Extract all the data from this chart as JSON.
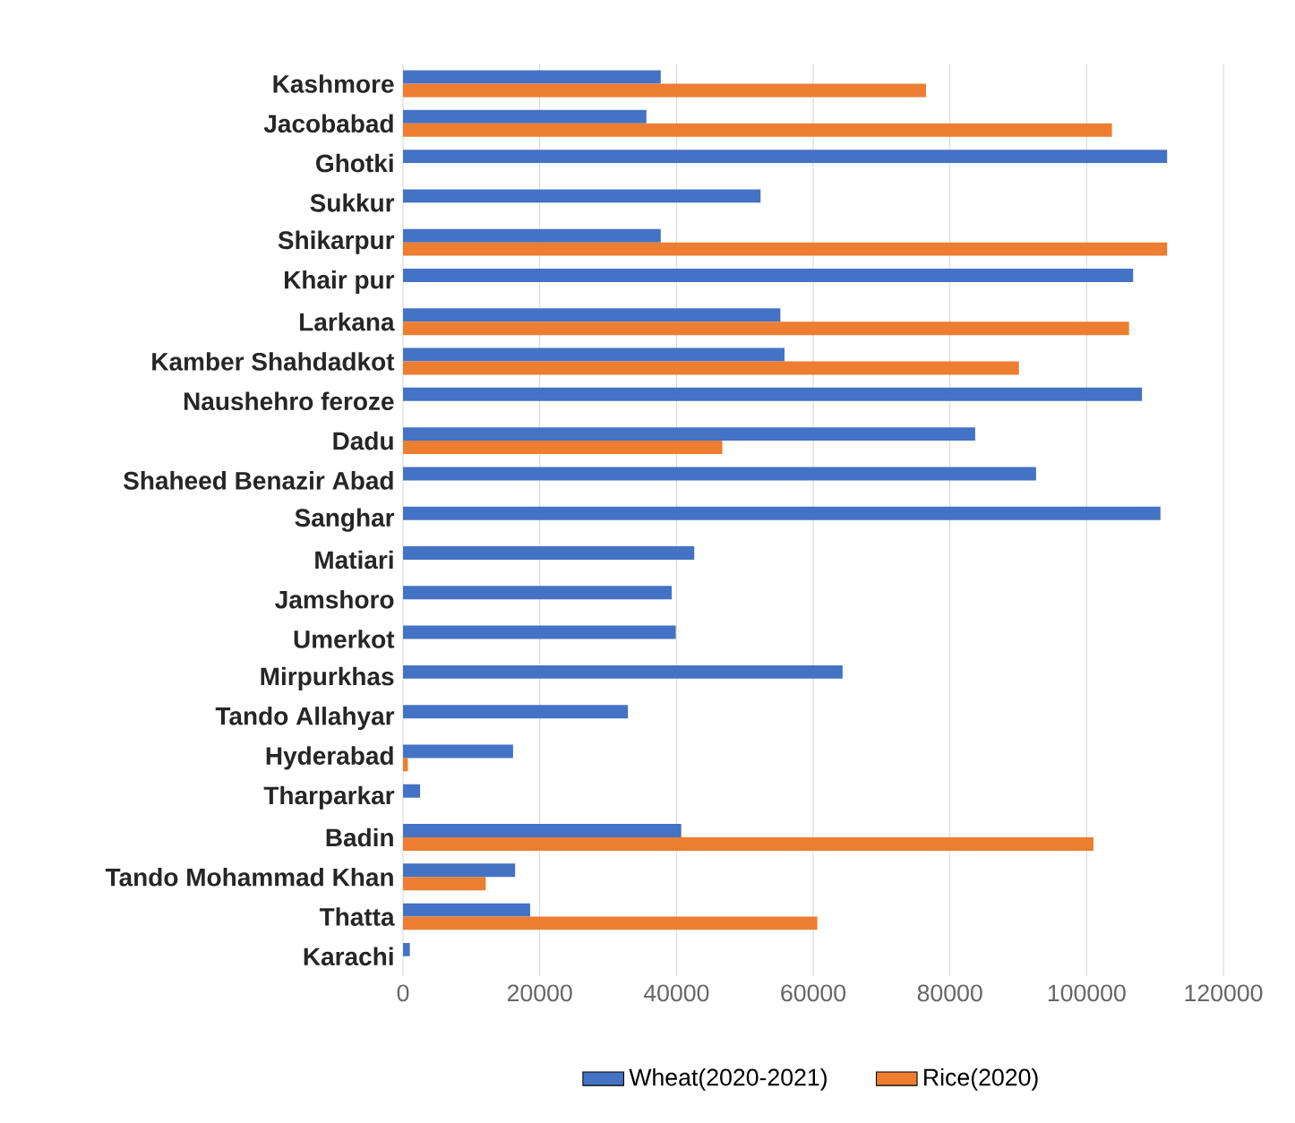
{
  "chart_data": {
    "type": "bar",
    "orientation": "horizontal",
    "categories": [
      "Kashmore",
      "Jacobabad",
      "Ghotki",
      "Sukkur",
      "Shikarpur",
      "Khair pur",
      "Larkana",
      "Kamber Shahdadkot",
      "Naushehro feroze",
      "Dadu",
      "Shaheed Benazir Abad",
      "Sanghar",
      "Matiari",
      "Jamshoro",
      "Umerkot",
      "Mirpurkhas",
      "Tando Allahyar",
      "Hyderabad",
      "Tharparkar",
      "Badin",
      "Tando Mohammad Khan",
      "Thatta",
      "Karachi"
    ],
    "series": [
      {
        "name": "Wheat(2020-2021)",
        "color": "#4472c4",
        "values": [
          37700,
          35600,
          111800,
          52300,
          37700,
          106800,
          55200,
          55800,
          108100,
          83700,
          92600,
          110800,
          42600,
          39300,
          39900,
          64300,
          32900,
          16100,
          2500,
          40700,
          16400,
          18600,
          1000
        ]
      },
      {
        "name": "Rice(2020)",
        "color": "#ed7d31",
        "values": [
          76500,
          103700,
          null,
          null,
          111800,
          null,
          106200,
          90100,
          null,
          46700,
          null,
          null,
          null,
          null,
          null,
          null,
          null,
          700,
          null,
          101000,
          12100,
          60600,
          null
        ]
      }
    ],
    "xlim": [
      0,
      120000
    ],
    "xticks": [
      0,
      20000,
      40000,
      60000,
      80000,
      100000,
      120000
    ],
    "grid": "x",
    "legend": "bottom"
  }
}
